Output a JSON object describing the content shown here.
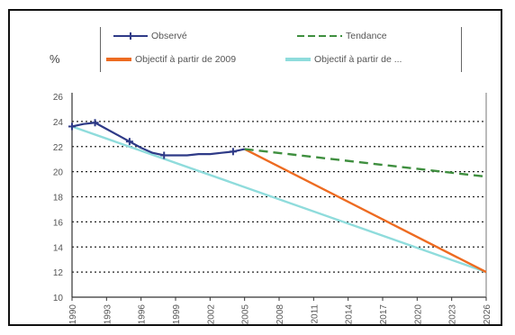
{
  "unit_label": "%",
  "legend": [
    {
      "label": "Observé",
      "color": "#2e3a87",
      "icon": "line-with-plus-marker"
    },
    {
      "label": "Tendance",
      "color": "#3f8f3f",
      "icon": "dashed-line"
    },
    {
      "label": "Objectif à partir de 2009",
      "color": "#ed6b21",
      "icon": "line"
    },
    {
      "label": "Objectif à partir de ...",
      "color": "#8fdcdc",
      "icon": "line"
    }
  ],
  "chart_data": {
    "type": "line",
    "x_ticks": [
      "1990",
      "1993",
      "1996",
      "1999",
      "2002",
      "2005",
      "2008",
      "2011",
      "2014",
      "2017",
      "2020",
      "2023",
      "2026"
    ],
    "ylim": [
      10,
      26
    ],
    "y_ticks": [
      "26",
      "24",
      "22",
      "20",
      "18",
      "16",
      "14",
      "12",
      "10"
    ],
    "grid": "horizontal dotted",
    "legend_position": "top",
    "series": [
      {
        "name": "Observé",
        "color": "#2e3a87",
        "x": [
          1990,
          1991,
          1992,
          1993,
          1994,
          1995,
          1996,
          1997,
          1998,
          1999,
          2000,
          2001,
          2002,
          2003,
          2004,
          2005
        ],
        "y": [
          23.6,
          23.8,
          23.9,
          23.4,
          22.9,
          22.4,
          21.9,
          21.5,
          21.3,
          21.3,
          21.3,
          21.4,
          21.4,
          21.5,
          21.6,
          21.8
        ],
        "markers_at": [
          1990,
          1992,
          1995,
          1998,
          2004
        ]
      },
      {
        "name": "Tendance",
        "color": "#3f8f3f",
        "x": [
          2005,
          2026
        ],
        "y": [
          21.8,
          19.6
        ]
      },
      {
        "name": "Objectif à partir de 2009",
        "color": "#ed6b21",
        "x": [
          2005,
          2026
        ],
        "y": [
          21.8,
          12.0
        ]
      },
      {
        "name": "Objectif à partir de ...",
        "color": "#8fdcdc",
        "x": [
          1990,
          2026
        ],
        "y": [
          23.6,
          12.0
        ]
      }
    ]
  }
}
